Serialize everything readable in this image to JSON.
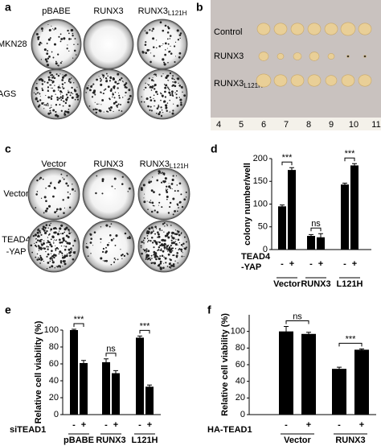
{
  "panels": {
    "a": {
      "label": "a",
      "columns": [
        "pBABE",
        "RUNX3",
        {
          "main": "RUNX3",
          "sub": "L121H"
        }
      ],
      "rows": [
        "MKN28",
        "AGS"
      ]
    },
    "b": {
      "label": "b",
      "rows": [
        "Control",
        "RUNX3",
        {
          "main": "RUNX3",
          "sub": "L121H"
        }
      ],
      "ruler": [
        "4",
        "5",
        "6",
        "7",
        "8",
        "9",
        "10",
        "11"
      ]
    },
    "c": {
      "label": "c",
      "columns": [
        "Vector",
        "RUNX3",
        {
          "main": "RUNX3",
          "sub": "L121H"
        }
      ],
      "rows": [
        "Vector",
        [
          "TEAD4",
          "-YAP"
        ]
      ]
    }
  },
  "chart_data": [
    {
      "label": "d",
      "type": "bar",
      "ylabel": "colony number/well",
      "ylim": [
        0,
        200
      ],
      "yticks": [
        0,
        50,
        100,
        150,
        200
      ],
      "values": [
        95,
        175,
        30,
        27,
        143,
        185
      ],
      "errors": [
        3,
        5,
        3,
        8,
        3,
        4
      ],
      "color": "#000000",
      "condition": [
        "TEAD4",
        "-YAP"
      ],
      "signs": [
        "-",
        "+",
        "-",
        "+",
        "-",
        "+"
      ],
      "groups": [
        "Vector",
        "RUNX3",
        "L121H"
      ],
      "significance": [
        "***",
        "ns",
        "***"
      ]
    },
    {
      "label": "e",
      "type": "bar",
      "ylabel": "Relative cell viability (%)",
      "ylim": [
        0,
        100
      ],
      "yticks": [
        0,
        20,
        40,
        60,
        80,
        100
      ],
      "values": [
        100,
        61,
        62,
        49,
        91,
        33
      ],
      "errors": [
        1,
        3,
        4,
        3,
        2,
        2
      ],
      "color": "#000000",
      "condition": [
        "siTEAD1"
      ],
      "signs": [
        "-",
        "+",
        "-",
        "+",
        "-",
        "+"
      ],
      "groups": [
        "pBABE",
        "RUNX3",
        "L121H"
      ],
      "significance": [
        "***",
        "ns",
        "***"
      ]
    },
    {
      "label": "f",
      "type": "bar",
      "ylabel": "Relative cell viability (%)",
      "ylim": [
        0,
        120
      ],
      "yticks": [
        0,
        20,
        40,
        60,
        80,
        100
      ],
      "values": [
        100,
        97,
        55,
        78
      ],
      "errors": [
        6,
        2,
        2,
        1
      ],
      "color": "#000000",
      "condition": [
        "HA-TEAD1"
      ],
      "signs": [
        "-",
        "+",
        "-",
        "+"
      ],
      "groups": [
        "Vector",
        "RUNX3"
      ],
      "significance": [
        "ns",
        "***"
      ]
    }
  ]
}
